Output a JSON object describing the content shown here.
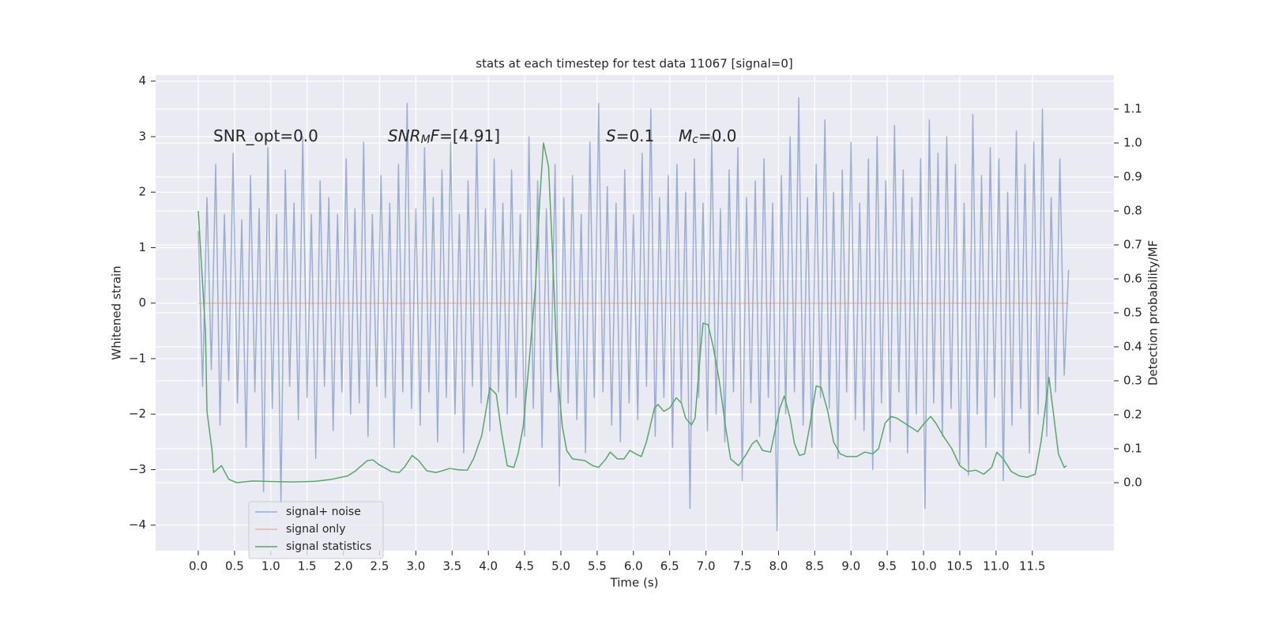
{
  "chart_data": {
    "type": "line",
    "title": "stats at each timestep for test data 11067 [signal=0]",
    "xlabel": "Time (s)",
    "ylabel": "Whitened strain",
    "y2label": "Detection probability/MF",
    "xlim": [
      -0.588,
      12.625
    ],
    "ylim": [
      -4.46,
      4.11
    ],
    "y2lim": [
      -0.2,
      1.2
    ],
    "xticks": [
      {
        "value": 0,
        "label": "0.0"
      },
      {
        "value": 0.5,
        "label": "0.5"
      },
      {
        "value": 1,
        "label": "1.0"
      },
      {
        "value": 1.5,
        "label": "1.5"
      },
      {
        "value": 2,
        "label": "2.0"
      },
      {
        "value": 2.5,
        "label": "2.5"
      },
      {
        "value": 3,
        "label": "3.0"
      },
      {
        "value": 3.5,
        "label": "3.5"
      },
      {
        "value": 4,
        "label": "4.0"
      },
      {
        "value": 4.5,
        "label": "4.5"
      },
      {
        "value": 5,
        "label": "5.0"
      },
      {
        "value": 5.5,
        "label": "5.5"
      },
      {
        "value": 6,
        "label": "6.0"
      },
      {
        "value": 6.5,
        "label": "6.5"
      },
      {
        "value": 7,
        "label": "7.0"
      },
      {
        "value": 7.5,
        "label": "7.5"
      },
      {
        "value": 8,
        "label": "8.0"
      },
      {
        "value": 8.5,
        "label": "8.5"
      },
      {
        "value": 9,
        "label": "9.0"
      },
      {
        "value": 9.5,
        "label": "9.5"
      },
      {
        "value": 10,
        "label": "10.0"
      },
      {
        "value": 10.5,
        "label": "10.5"
      },
      {
        "value": 11,
        "label": "11.0"
      },
      {
        "value": 11.5,
        "label": "11.5"
      }
    ],
    "yticks": [
      {
        "value": -4,
        "label": "−4"
      },
      {
        "value": -3,
        "label": "−3"
      },
      {
        "value": -2,
        "label": "−2"
      },
      {
        "value": -1,
        "label": "−1"
      },
      0,
      1,
      2,
      3,
      4
    ],
    "y2ticks": [
      {
        "value": 0,
        "label": "0.0"
      },
      {
        "value": 0.1,
        "label": "0.1"
      },
      {
        "value": 0.2,
        "label": "0.2"
      },
      {
        "value": 0.3,
        "label": "0.3"
      },
      {
        "value": 0.4,
        "label": "0.4"
      },
      {
        "value": 0.5,
        "label": "0.5"
      },
      {
        "value": 0.6,
        "label": "0.6"
      },
      {
        "value": 0.7,
        "label": "0.7"
      },
      {
        "value": 0.8,
        "label": "0.8"
      },
      {
        "value": 0.9,
        "label": "0.9"
      },
      {
        "value": 1.0,
        "label": "1.0"
      },
      {
        "value": 1.1,
        "label": "1.1"
      }
    ],
    "grid": true,
    "legend": "lower left",
    "annotations": [
      {
        "parts": [
          {
            "text": "SNR_opt=0.0",
            "style": "normal"
          }
        ]
      },
      {
        "parts": [
          {
            "text": "SNR",
            "style": "italic"
          },
          {
            "text": "M",
            "style": "sub"
          },
          {
            "text": "F",
            "style": "italic"
          },
          {
            "text": "=[4.91]",
            "style": "normal"
          }
        ]
      },
      {
        "parts": [
          {
            "text": "S",
            "style": "italic"
          },
          {
            "text": "=0.1",
            "style": "normal"
          }
        ]
      },
      {
        "parts": [
          {
            "text": "M",
            "style": "italic"
          },
          {
            "text": "c",
            "style": "sub"
          },
          {
            "text": "=0.0",
            "style": "normal"
          }
        ]
      }
    ],
    "series": [
      {
        "name": "signal+ noise",
        "color": "#4c72b0",
        "opacity": 0.5,
        "x": [
          0,
          0.06,
          0.12,
          0.18,
          0.24,
          0.3,
          0.36,
          0.42,
          0.48,
          0.54,
          0.6,
          0.66,
          0.72,
          0.78,
          0.84,
          0.9,
          0.96,
          1.02,
          1.08,
          1.14,
          1.2,
          1.26,
          1.32,
          1.38,
          1.44,
          1.5,
          1.56,
          1.62,
          1.68,
          1.74,
          1.8,
          1.86,
          1.92,
          1.98,
          2.04,
          2.1,
          2.16,
          2.22,
          2.28,
          2.34,
          2.4,
          2.46,
          2.52,
          2.58,
          2.64,
          2.7,
          2.76,
          2.82,
          2.88,
          2.94,
          3.0,
          3.06,
          3.12,
          3.18,
          3.24,
          3.3,
          3.36,
          3.42,
          3.48,
          3.54,
          3.6,
          3.66,
          3.72,
          3.78,
          3.84,
          3.9,
          3.96,
          4.02,
          4.08,
          4.14,
          4.2,
          4.26,
          4.32,
          4.38,
          4.44,
          4.5,
          4.56,
          4.62,
          4.68,
          4.74,
          4.8,
          4.86,
          4.92,
          4.98,
          5.04,
          5.1,
          5.16,
          5.22,
          5.28,
          5.34,
          5.4,
          5.46,
          5.52,
          5.58,
          5.64,
          5.7,
          5.76,
          5.82,
          5.88,
          5.94,
          6.0,
          6.06,
          6.12,
          6.18,
          6.24,
          6.3,
          6.36,
          6.42,
          6.48,
          6.54,
          6.6,
          6.66,
          6.72,
          6.78,
          6.84,
          6.9,
          6.96,
          7.02,
          7.08,
          7.14,
          7.2,
          7.26,
          7.32,
          7.38,
          7.44,
          7.5,
          7.56,
          7.62,
          7.68,
          7.74,
          7.8,
          7.86,
          7.92,
          7.98,
          8.04,
          8.1,
          8.16,
          8.22,
          8.28,
          8.34,
          8.4,
          8.46,
          8.52,
          8.58,
          8.64,
          8.7,
          8.76,
          8.82,
          8.88,
          8.94,
          9.0,
          9.06,
          9.12,
          9.18,
          9.24,
          9.3,
          9.36,
          9.42,
          9.48,
          9.54,
          9.6,
          9.66,
          9.72,
          9.78,
          9.84,
          9.9,
          9.96,
          10.02,
          10.08,
          10.14,
          10.2,
          10.26,
          10.32,
          10.38,
          10.44,
          10.5,
          10.56,
          10.62,
          10.68,
          10.74,
          10.8,
          10.86,
          10.92,
          10.98,
          11.04,
          11.1,
          11.16,
          11.22,
          11.28,
          11.34,
          11.4,
          11.46,
          11.52,
          11.58,
          11.64,
          11.7,
          11.76,
          11.82,
          11.88,
          11.94,
          12.0
        ],
        "values": [
          1.3,
          -1.5,
          1.9,
          -1.2,
          2.5,
          -2.2,
          1.6,
          -1.4,
          2.7,
          -1.8,
          1.5,
          -2.6,
          2.3,
          -1.6,
          1.7,
          -3.4,
          2.8,
          -1.9,
          1.6,
          -3.6,
          2.4,
          -1.5,
          1.8,
          -2.1,
          3.0,
          -1.7,
          1.6,
          -2.8,
          2.2,
          -1.5,
          1.9,
          -2.3,
          1.6,
          -1.6,
          2.6,
          -2.0,
          1.7,
          -1.8,
          2.9,
          -2.4,
          1.6,
          -1.5,
          2.3,
          -1.7,
          1.8,
          -2.6,
          2.5,
          -1.6,
          3.6,
          -1.9,
          1.7,
          -2.2,
          2.8,
          -1.6,
          1.9,
          -2.5,
          2.4,
          -1.7,
          2.9,
          -2.0,
          1.6,
          -2.7,
          2.2,
          -1.5,
          3.0,
          -1.8,
          1.7,
          -2.3,
          2.6,
          -1.6,
          1.8,
          -2.0,
          2.4,
          -1.7,
          1.6,
          -2.4,
          3.0,
          -1.9,
          2.2,
          -2.6,
          1.7,
          -1.6,
          2.5,
          -3.3,
          1.9,
          -1.8,
          2.3,
          -2.1,
          1.6,
          -2.7,
          2.9,
          -1.7,
          3.6,
          -1.6,
          2.1,
          -2.2,
          1.8,
          -2.5,
          2.4,
          -1.8,
          1.6,
          -2.1,
          2.7,
          -1.5,
          3.5,
          -2.4,
          1.9,
          -1.7,
          2.3,
          -2.6,
          2.5,
          -1.8,
          2.0,
          -3.7,
          2.6,
          -1.7,
          1.8,
          -2.3,
          3.0,
          -2.0,
          1.7,
          -2.5,
          2.4,
          -1.6,
          2.8,
          -3.2,
          1.9,
          -1.8,
          2.2,
          -2.4,
          2.6,
          -1.7,
          1.8,
          -4.1,
          2.3,
          -2.0,
          3.0,
          -1.6,
          3.7,
          -2.2,
          1.9,
          -2.6,
          2.5,
          -1.7,
          3.3,
          -1.9,
          2.0,
          -2.8,
          2.4,
          -1.6,
          2.9,
          -2.1,
          1.8,
          -2.3,
          2.6,
          -3.0,
          3.0,
          -1.8,
          2.2,
          -2.5,
          3.2,
          -1.6,
          2.4,
          -2.7,
          1.9,
          -2.0,
          2.6,
          -3.7,
          3.3,
          -1.8,
          2.7,
          -2.4,
          3.0,
          -1.9,
          2.5,
          -2.9,
          1.8,
          -3.1,
          3.4,
          -2.0,
          2.3,
          -2.6,
          2.8,
          -1.7,
          2.6,
          -3.2,
          2.0,
          -2.2,
          3.1,
          -1.9,
          2.5,
          -2.7,
          2.9,
          -2.0,
          3.5,
          -2.4,
          1.9,
          -1.6,
          2.6,
          -1.3,
          0.6
        ]
      },
      {
        "name": "signal only",
        "color": "#dd8452",
        "opacity": 0.5,
        "x": [
          0,
          12.0
        ],
        "values": [
          0,
          0
        ]
      },
      {
        "name": "signal statistics",
        "color": "#55a868",
        "opacity": 1,
        "axis": "y2",
        "x": [
          0,
          0.1,
          0.12,
          0.19,
          0.21,
          0.32,
          0.42,
          0.53,
          0.75,
          1.08,
          1.3,
          1.62,
          1.84,
          2.06,
          2.17,
          2.33,
          2.41,
          2.49,
          2.66,
          2.77,
          2.84,
          2.95,
          3.04,
          3.15,
          3.28,
          3.47,
          3.58,
          3.71,
          3.8,
          3.91,
          4.02,
          4.11,
          4.18,
          4.26,
          4.35,
          4.41,
          4.48,
          4.56,
          4.65,
          4.71,
          4.76,
          4.83,
          4.89,
          4.95,
          5.02,
          5.08,
          5.16,
          5.33,
          5.44,
          5.52,
          5.61,
          5.68,
          5.78,
          5.87,
          5.95,
          6.03,
          6.11,
          6.18,
          6.29,
          6.34,
          6.42,
          6.5,
          6.59,
          6.66,
          6.72,
          6.8,
          6.85,
          6.92,
          6.96,
          7.03,
          7.1,
          7.18,
          7.27,
          7.34,
          7.45,
          7.56,
          7.64,
          7.7,
          7.78,
          7.89,
          7.94,
          8.02,
          8.08,
          8.16,
          8.22,
          8.29,
          8.36,
          8.43,
          8.52,
          8.59,
          8.68,
          8.76,
          8.85,
          8.94,
          9.08,
          9.19,
          9.3,
          9.38,
          9.47,
          9.55,
          9.63,
          9.74,
          9.85,
          9.92,
          10.01,
          10.1,
          10.17,
          10.28,
          10.39,
          10.5,
          10.61,
          10.72,
          10.83,
          10.94,
          11.01,
          11.1,
          11.21,
          11.32,
          11.43,
          11.54,
          11.62,
          11.73,
          11.86,
          11.94,
          11.97
        ],
        "values": [
          0.8,
          0.44,
          0.21,
          0.095,
          0.03,
          0.05,
          0.01,
          0,
          0.005,
          0.003,
          0.002,
          0.004,
          0.01,
          0.02,
          0.035,
          0.065,
          0.067,
          0.053,
          0.033,
          0.03,
          0.045,
          0.08,
          0.065,
          0.035,
          0.03,
          0.042,
          0.038,
          0.037,
          0.072,
          0.14,
          0.28,
          0.26,
          0.15,
          0.05,
          0.045,
          0.085,
          0.165,
          0.35,
          0.58,
          0.84,
          1.0,
          0.93,
          0.65,
          0.33,
          0.165,
          0.095,
          0.07,
          0.065,
          0.05,
          0.045,
          0.067,
          0.09,
          0.07,
          0.07,
          0.095,
          0.085,
          0.077,
          0.12,
          0.22,
          0.23,
          0.21,
          0.22,
          0.25,
          0.235,
          0.19,
          0.17,
          0.19,
          0.375,
          0.47,
          0.465,
          0.4,
          0.305,
          0.165,
          0.07,
          0.05,
          0.085,
          0.115,
          0.125,
          0.095,
          0.09,
          0.14,
          0.22,
          0.255,
          0.19,
          0.115,
          0.08,
          0.085,
          0.165,
          0.285,
          0.28,
          0.21,
          0.12,
          0.085,
          0.077,
          0.077,
          0.09,
          0.085,
          0.1,
          0.175,
          0.195,
          0.19,
          0.175,
          0.16,
          0.15,
          0.175,
          0.195,
          0.175,
          0.135,
          0.1,
          0.05,
          0.033,
          0.037,
          0.025,
          0.045,
          0.09,
          0.07,
          0.033,
          0.02,
          0.016,
          0.025,
          0.12,
          0.31,
          0.085,
          0.045,
          0.05
        ]
      }
    ]
  }
}
